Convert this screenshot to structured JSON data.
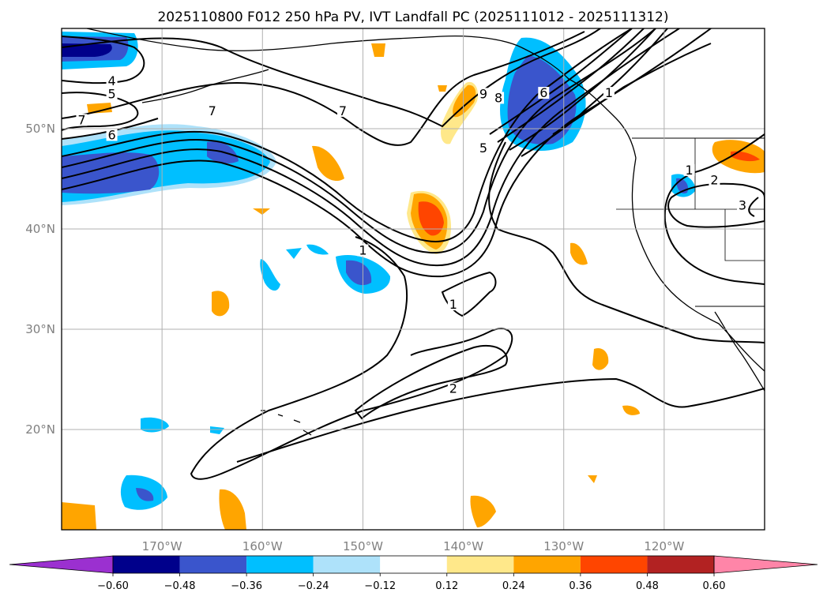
{
  "title": "2025110800 F012 250 hPa PV, IVT Landfall PC (2025111012 - 2025111312)",
  "chart_data": {
    "type": "map-contour",
    "title": "2025110800 F012 250 hPa PV, IVT Landfall PC (2025111012 - 2025111312)",
    "lon_range": [
      -180,
      -110
    ],
    "lat_range": [
      10,
      60
    ],
    "lon_ticks": [
      {
        "lon": -170,
        "label": "170°W"
      },
      {
        "lon": -160,
        "label": "160°W"
      },
      {
        "lon": -150,
        "label": "150°W"
      },
      {
        "lon": -140,
        "label": "140°W"
      },
      {
        "lon": -130,
        "label": "130°W"
      },
      {
        "lon": -120,
        "label": "120°W"
      }
    ],
    "lat_ticks": [
      {
        "lat": 20,
        "label": "20°N"
      },
      {
        "lat": 30,
        "label": "30°N"
      },
      {
        "lat": 40,
        "label": "40°N"
      },
      {
        "lat": 50,
        "label": "50°N"
      }
    ],
    "colorbar": {
      "levels": [
        "−0.60",
        "−0.48",
        "−0.36",
        "−0.24",
        "−0.12",
        "0.12",
        "0.24",
        "0.36",
        "0.48",
        "0.60"
      ],
      "colors": [
        "#9b30d0",
        "#00008b",
        "#3a55cc",
        "#00bfff",
        "#aee2fa",
        "#ffffff",
        "#ffe88a",
        "#ffa500",
        "#ff4500",
        "#b22222",
        "#ff85a8"
      ]
    },
    "contour_labels": [
      {
        "text": "4",
        "lon": -175,
        "lat": 54.5
      },
      {
        "text": "5",
        "lon": -175,
        "lat": 53.2
      },
      {
        "text": "7",
        "lon": -178,
        "lat": 50.6
      },
      {
        "text": "6",
        "lon": -175,
        "lat": 49.1
      },
      {
        "text": "7",
        "lon": -165,
        "lat": 51.5
      },
      {
        "text": "7",
        "lon": -152,
        "lat": 51.5
      },
      {
        "text": "9",
        "lon": -138,
        "lat": 53.2
      },
      {
        "text": "8",
        "lon": -136.5,
        "lat": 52.8
      },
      {
        "text": "6",
        "lon": -132,
        "lat": 53.3
      },
      {
        "text": "5",
        "lon": -138,
        "lat": 47.8
      },
      {
        "text": "1",
        "lon": -125.5,
        "lat": 53.3
      },
      {
        "text": "1",
        "lon": -150,
        "lat": 37.6
      },
      {
        "text": "1",
        "lon": -141,
        "lat": 32.2
      },
      {
        "text": "2",
        "lon": -141,
        "lat": 23.8
      },
      {
        "text": "1",
        "lon": -117.5,
        "lat": 45.6
      },
      {
        "text": "2",
        "lon": -115,
        "lat": 44.6
      },
      {
        "text": "3",
        "lon": -112.2,
        "lat": 42.1
      }
    ],
    "pv_anomaly_regions_negative": [
      {
        "name": "western-jet-band",
        "lon": [
          -180,
          -158
        ],
        "lat": [
          43,
          49
        ]
      },
      {
        "name": "northwest-corner",
        "lon": [
          -180,
          -170
        ],
        "lat": [
          56,
          60
        ]
      },
      {
        "name": "ridge-northeast",
        "lon": [
          -135,
          -128
        ],
        "lat": [
          48,
          58
        ]
      },
      {
        "name": "subtropical-east",
        "lon": [
          -154,
          -147
        ],
        "lat": [
          34,
          38
        ]
      },
      {
        "name": "idaho-blob",
        "lon": [
          -121,
          -118
        ],
        "lat": [
          42,
          45
        ]
      }
    ],
    "pv_anomaly_regions_positive": [
      {
        "name": "trough-core",
        "lon": [
          -146,
          -142
        ],
        "lat": [
          38,
          44
        ]
      },
      {
        "name": "ne-plains",
        "lon": [
          -115,
          -110
        ],
        "lat": [
          46,
          49
        ]
      },
      {
        "name": "gulf-of-alaska",
        "lon": [
          -142,
          -137
        ],
        "lat": [
          48,
          55
        ]
      }
    ]
  }
}
